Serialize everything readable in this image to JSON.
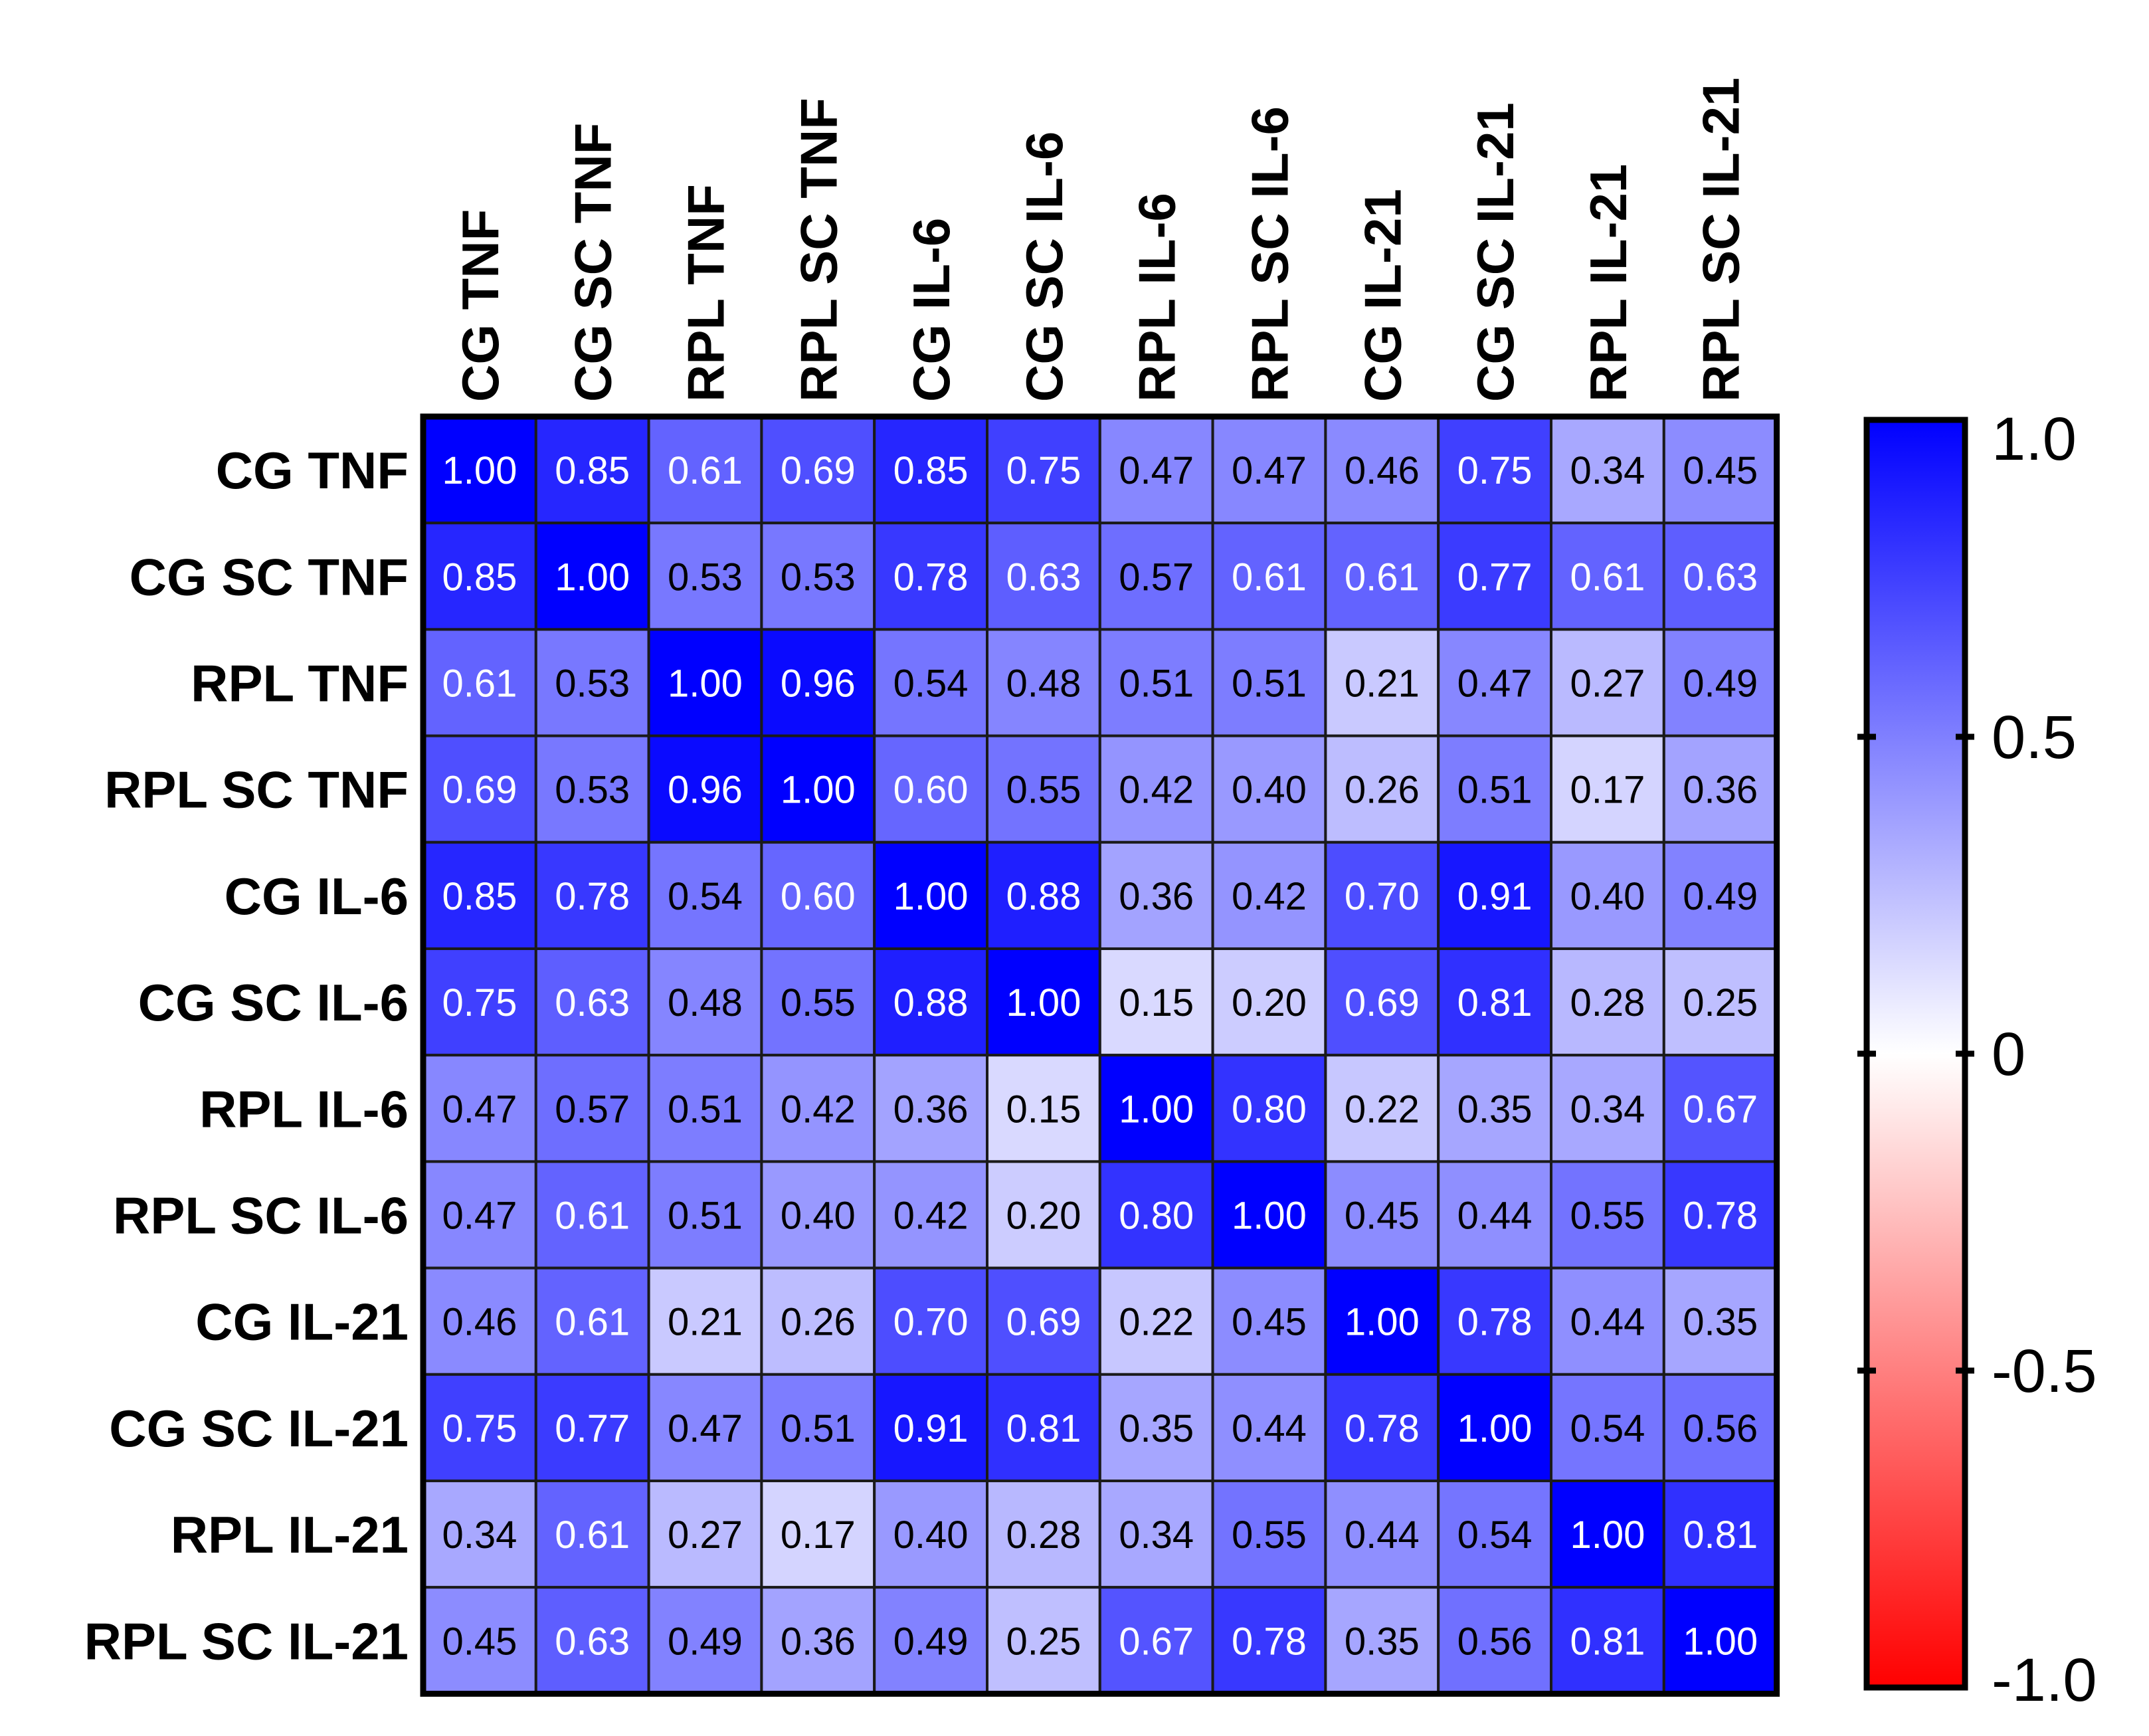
{
  "chart_data": {
    "type": "heatmap",
    "labels": [
      "CG TNF",
      "CG SC TNF",
      "RPL TNF",
      "RPL SC TNF",
      "CG IL-6",
      "CG SC IL-6",
      "RPL IL-6",
      "RPL SC IL-6",
      "CG IL-21",
      "CG SC IL-21",
      "RPL IL-21",
      "RPL SC IL-21"
    ],
    "values": [
      [
        1.0,
        0.85,
        0.61,
        0.69,
        0.85,
        0.75,
        0.47,
        0.47,
        0.46,
        0.75,
        0.34,
        0.45
      ],
      [
        0.85,
        1.0,
        0.53,
        0.53,
        0.78,
        0.63,
        0.57,
        0.61,
        0.61,
        0.77,
        0.61,
        0.63
      ],
      [
        0.61,
        0.53,
        1.0,
        0.96,
        0.54,
        0.48,
        0.51,
        0.51,
        0.21,
        0.47,
        0.27,
        0.49
      ],
      [
        0.69,
        0.53,
        0.96,
        1.0,
        0.6,
        0.55,
        0.42,
        0.4,
        0.26,
        0.51,
        0.17,
        0.36
      ],
      [
        0.85,
        0.78,
        0.54,
        0.6,
        1.0,
        0.88,
        0.36,
        0.42,
        0.7,
        0.91,
        0.4,
        0.49
      ],
      [
        0.75,
        0.63,
        0.48,
        0.55,
        0.88,
        1.0,
        0.15,
        0.2,
        0.69,
        0.81,
        0.28,
        0.25
      ],
      [
        0.47,
        0.57,
        0.51,
        0.42,
        0.36,
        0.15,
        1.0,
        0.8,
        0.22,
        0.35,
        0.34,
        0.67
      ],
      [
        0.47,
        0.61,
        0.51,
        0.4,
        0.42,
        0.2,
        0.8,
        1.0,
        0.45,
        0.44,
        0.55,
        0.78
      ],
      [
        0.46,
        0.61,
        0.21,
        0.26,
        0.7,
        0.69,
        0.22,
        0.45,
        1.0,
        0.78,
        0.44,
        0.35
      ],
      [
        0.75,
        0.77,
        0.47,
        0.51,
        0.91,
        0.81,
        0.35,
        0.44,
        0.78,
        1.0,
        0.54,
        0.56
      ],
      [
        0.34,
        0.61,
        0.27,
        0.17,
        0.4,
        0.28,
        0.34,
        0.55,
        0.44,
        0.54,
        1.0,
        0.81
      ],
      [
        0.45,
        0.63,
        0.49,
        0.36,
        0.49,
        0.25,
        0.67,
        0.78,
        0.35,
        0.56,
        0.81,
        1.0
      ]
    ],
    "colorbar": {
      "range": [
        -1.0,
        1.0
      ],
      "ticks": [
        1.0,
        0.5,
        0,
        -0.5,
        -1.0
      ],
      "tick_labels": [
        "1.0",
        "0.5",
        "0",
        "-0.5",
        "-1.0"
      ],
      "color_max": "#0000ff",
      "color_mid": "#ffffff",
      "color_min": "#ff0000"
    },
    "value_format_decimals": 2
  }
}
